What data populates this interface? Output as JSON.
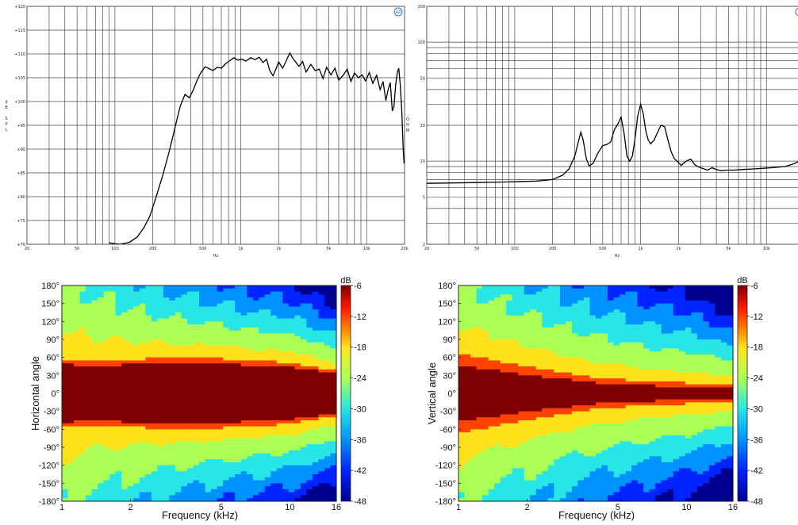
{
  "charts": {
    "spl": {
      "type": "line",
      "x_unit": "Hz",
      "y_unit_letters": [
        "d",
        "B",
        "",
        "S",
        "P",
        "L"
      ],
      "y_ticks": [
        "+120",
        "+115",
        "+110",
        "+105",
        "+100",
        "+95",
        "+90",
        "+85",
        "+80",
        "+75",
        "+70"
      ],
      "x_ticks": [
        [
          "20",
          "20"
        ],
        [
          "50",
          "50"
        ],
        [
          "100",
          "100"
        ],
        [
          "200",
          "200"
        ],
        [
          "500",
          "500"
        ],
        [
          "1000",
          "1k"
        ],
        [
          "2000",
          "2k"
        ],
        [
          "5000",
          "5k"
        ],
        [
          "10000",
          "10k"
        ],
        [
          "20000",
          "20k"
        ]
      ],
      "xlim": [
        20,
        20000
      ],
      "ylim": [
        70,
        120
      ],
      "grid": true
    },
    "impedance": {
      "type": "line",
      "x_unit": "Hz",
      "right_unit_letters": [
        "O",
        "H",
        "M"
      ],
      "y_scale": "log",
      "y_ticks": [
        "200",
        "100",
        "50",
        "20",
        "10",
        "5",
        "2"
      ],
      "x_ticks": [
        [
          "20",
          "20"
        ],
        [
          "50",
          "50"
        ],
        [
          "100",
          "100"
        ],
        [
          "200",
          "200"
        ],
        [
          "500",
          "500"
        ],
        [
          "1000",
          "1k"
        ],
        [
          "2000",
          "2k"
        ],
        [
          "5000",
          "5k"
        ],
        [
          "10000",
          "10k"
        ]
      ],
      "xlim": [
        20,
        20000
      ],
      "ylim": [
        2,
        200
      ],
      "grid": true
    },
    "horizontal_directivity": {
      "type": "heatmap",
      "ylabel": "Horizontal angle",
      "xlabel": "Frequency (kHz)"
    },
    "vertical_directivity": {
      "type": "heatmap",
      "ylabel": "Vertical angle",
      "xlabel": "Frequency (kHz)"
    }
  },
  "chart_data": [
    {
      "type": "line",
      "xlabel": "Hz",
      "ylabel": "dB SPL",
      "x_scale": "log",
      "xlim": [
        20,
        20000
      ],
      "ylim": [
        70,
        120
      ],
      "series": [
        {
          "x": [
            90,
            100,
            110,
            130,
            150,
            170,
            190,
            210,
            240,
            270,
            300,
            330,
            360,
            390,
            420,
            450,
            480,
            520,
            560,
            600,
            650,
            700,
            760,
            820,
            880,
            950,
            1020,
            1100,
            1200,
            1300,
            1400,
            1500,
            1600,
            1700,
            1800,
            1900,
            2000,
            2150,
            2300,
            2450,
            2600,
            2750,
            2900,
            3100,
            3300,
            3600,
            3900,
            4200,
            4500,
            4800,
            5200,
            5600,
            6000,
            6500,
            7000,
            7500,
            8000,
            8600,
            9200,
            9800,
            10500,
            11200,
            12000,
            12800,
            13500,
            14200,
            14800,
            15400,
            16000,
            16500,
            17000,
            17500,
            18000,
            18500,
            19000,
            19500,
            19800,
            20000
          ],
          "y": [
            70.3,
            70.1,
            70.0,
            70.4,
            71.5,
            73.5,
            76.0,
            79.5,
            84.5,
            89.5,
            94.5,
            99.0,
            101.5,
            100.8,
            102.5,
            104.5,
            106.0,
            107.3,
            106.9,
            106.5,
            107.2,
            107.0,
            108.0,
            108.6,
            109.2,
            108.7,
            108.9,
            108.5,
            109.2,
            108.8,
            109.3,
            108.2,
            108.9,
            106.5,
            105.4,
            106.8,
            108.3,
            107.0,
            108.6,
            110.2,
            109.0,
            108.2,
            107.4,
            108.4,
            106.2,
            107.8,
            106.5,
            106.8,
            104.8,
            107.2,
            105.6,
            107.0,
            104.5,
            105.5,
            106.8,
            104.2,
            106.0,
            105.0,
            105.6,
            104.3,
            106.1,
            103.8,
            105.5,
            102.5,
            104.2,
            100.2,
            102.5,
            104.0,
            98.0,
            99.0,
            103.5,
            106.0,
            107.0,
            103.5,
            98.0,
            90.0,
            87.0,
            87.5
          ]
        }
      ]
    },
    {
      "type": "line",
      "xlabel": "Hz",
      "ylabel": "",
      "x_scale": "log",
      "y_scale": "log",
      "xlim": [
        20,
        20000
      ],
      "ylim": [
        2,
        200
      ],
      "series": [
        {
          "x": [
            20,
            50,
            100,
            150,
            200,
            240,
            270,
            300,
            320,
            335,
            350,
            370,
            390,
            420,
            460,
            500,
            540,
            580,
            620,
            660,
            700,
            740,
            780,
            820,
            860,
            900,
            950,
            1000,
            1050,
            1100,
            1150,
            1200,
            1280,
            1350,
            1450,
            1550,
            1650,
            1750,
            1850,
            1950,
            2100,
            2300,
            2500,
            2700,
            2900,
            3100,
            3400,
            3700,
            4000,
            4400,
            4800,
            5500,
            6500,
            8000,
            9500,
            11000,
            12500,
            14000,
            15000,
            16000,
            17000,
            18000,
            19000,
            20000
          ],
          "y": [
            6.5,
            6.6,
            6.7,
            6.8,
            7.0,
            7.6,
            8.6,
            11.0,
            14.5,
            17.5,
            15.0,
            10.5,
            9.1,
            9.6,
            11.8,
            13.5,
            13.8,
            14.5,
            18.5,
            20.5,
            23.5,
            17.0,
            11.0,
            10.0,
            11.0,
            15.0,
            24.0,
            30.0,
            25.0,
            18.0,
            15.0,
            14.0,
            15.0,
            17.0,
            20.0,
            19.5,
            15.0,
            12.0,
            10.5,
            10.0,
            9.2,
            10.0,
            10.4,
            9.3,
            8.9,
            8.7,
            8.4,
            8.8,
            8.5,
            8.3,
            8.4,
            8.4,
            8.5,
            8.6,
            8.7,
            8.8,
            8.9,
            9.0,
            9.2,
            9.4,
            9.6,
            10.0,
            11.0,
            10.5
          ]
        }
      ]
    },
    {
      "type": "heatmap",
      "xlabel": "Frequency (kHz)",
      "ylabel": "Horizontal angle",
      "x_scale": "log",
      "xlim": [
        1,
        16
      ],
      "ylim": [
        -180,
        180
      ],
      "x_ticks": [
        "1",
        "2",
        "5",
        "10",
        "16"
      ],
      "y_ticks": [
        "180°",
        "150°",
        "120°",
        "90°",
        "60°",
        "30°",
        "0°",
        "-30°",
        "-60°",
        "-90°",
        "-120°",
        "-150°",
        "-180°"
      ],
      "colorbar": {
        "label": "dB",
        "min": -48,
        "max": -6,
        "ticks": [
          "-6",
          "-12",
          "-18",
          "-24",
          "-30",
          "-36",
          "-42",
          "-48"
        ]
      },
      "beam_half_width_deg": [
        {
          "f": 1,
          "core": 45,
          "edge": 62
        },
        {
          "f": 1.5,
          "core": 40,
          "edge": 58
        },
        {
          "f": 2.5,
          "core": 48,
          "edge": 62
        },
        {
          "f": 5,
          "core": 45,
          "edge": 62
        },
        {
          "f": 10,
          "core": 40,
          "edge": 55
        },
        {
          "f": 16,
          "core": 30,
          "edge": 40
        }
      ]
    },
    {
      "type": "heatmap",
      "xlabel": "Frequency (kHz)",
      "ylabel": "Vertical angle",
      "x_scale": "log",
      "xlim": [
        1,
        16
      ],
      "ylim": [
        -180,
        180
      ],
      "x_ticks": [
        "1",
        "2",
        "5",
        "10",
        "16"
      ],
      "y_ticks": [
        "180°",
        "150°",
        "120°",
        "90°",
        "60°",
        "30°",
        "0°",
        "-30°",
        "-60°",
        "-90°",
        "-120°",
        "-150°",
        "-180°"
      ],
      "colorbar": {
        "label": "dB",
        "min": -48,
        "max": -6,
        "ticks": [
          "-6",
          "-12",
          "-18",
          "-24",
          "-30",
          "-36",
          "-42",
          "-48"
        ]
      },
      "beam_half_width_deg": [
        {
          "f": 1,
          "core": 38,
          "edge": 75
        },
        {
          "f": 2,
          "core": 24,
          "edge": 52
        },
        {
          "f": 4,
          "core": 13,
          "edge": 30
        },
        {
          "f": 8,
          "core": 8,
          "edge": 22
        },
        {
          "f": 16,
          "core": 5,
          "edge": 18
        }
      ]
    }
  ]
}
